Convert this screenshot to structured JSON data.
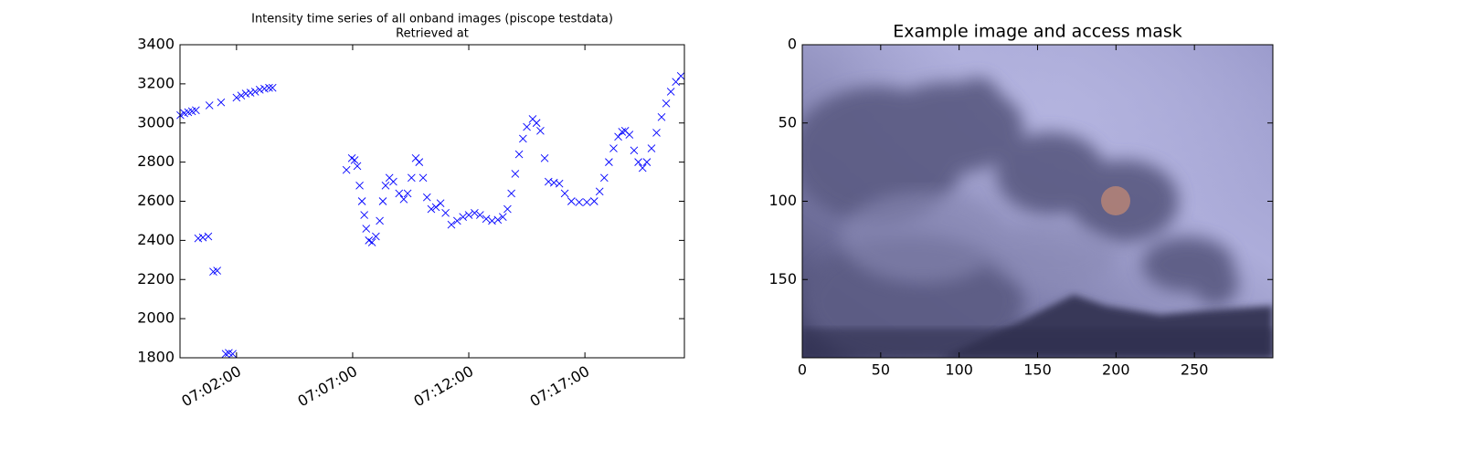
{
  "chart_data": [
    {
      "type": "scatter",
      "title": "Intensity time series of all onband images (piscope testdata)",
      "subtitle": "Retrieved at",
      "marker": "x",
      "color": "#0000ff",
      "x": [
        "06:59:35",
        "06:59:45",
        "06:59:55",
        "07:00:05",
        "07:00:15",
        "07:00:21",
        "07:00:33",
        "07:00:47",
        "07:00:50",
        "07:01:00",
        "07:01:10",
        "07:01:20",
        "07:01:32",
        "07:01:40",
        "07:01:50",
        "07:02:00",
        "07:02:12",
        "07:02:24",
        "07:02:36",
        "07:02:48",
        "07:03:00",
        "07:03:12",
        "07:03:24",
        "07:03:33",
        "07:06:44",
        "07:06:58",
        "07:07:05",
        "07:07:12",
        "07:07:18",
        "07:07:24",
        "07:07:30",
        "07:07:35",
        "07:07:42",
        "07:07:50",
        "07:08:00",
        "07:08:10",
        "07:08:18",
        "07:08:25",
        "07:08:35",
        "07:08:45",
        "07:09:00",
        "07:09:12",
        "07:09:22",
        "07:09:32",
        "07:09:43",
        "07:09:52",
        "07:10:02",
        "07:10:12",
        "07:10:23",
        "07:10:35",
        "07:10:47",
        "07:11:00",
        "07:11:15",
        "07:11:30",
        "07:11:45",
        "07:12:00",
        "07:12:15",
        "07:12:29",
        "07:12:45",
        "07:13:00",
        "07:13:15",
        "07:13:28",
        "07:13:40",
        "07:13:50",
        "07:14:00",
        "07:14:10",
        "07:14:20",
        "07:14:30",
        "07:14:45",
        "07:14:55",
        "07:15:05",
        "07:15:16",
        "07:15:26",
        "07:15:40",
        "07:15:54",
        "07:16:08",
        "07:16:25",
        "07:16:45",
        "07:17:05",
        "07:17:24",
        "07:17:38",
        "07:17:50",
        "07:18:02",
        "07:18:14",
        "07:18:26",
        "07:18:36",
        "07:18:44",
        "07:18:55",
        "07:19:07",
        "07:19:18",
        "07:19:29",
        "07:19:40",
        "07:19:52",
        "07:20:05",
        "07:20:18",
        "07:20:30",
        "07:20:42",
        "07:20:55",
        "07:21:08"
      ],
      "values": [
        3040,
        3050,
        3055,
        3060,
        3065,
        2410,
        2415,
        2420,
        3090,
        2240,
        2245,
        3105,
        1820,
        1825,
        1820,
        3130,
        3140,
        3150,
        3155,
        3160,
        3170,
        3175,
        3180,
        3180,
        2760,
        2820,
        2810,
        2780,
        2680,
        2600,
        2530,
        2460,
        2400,
        2390,
        2420,
        2500,
        2600,
        2680,
        2720,
        2700,
        2640,
        2610,
        2640,
        2720,
        2820,
        2800,
        2720,
        2620,
        2560,
        2570,
        2590,
        2540,
        2480,
        2500,
        2520,
        2530,
        2540,
        2530,
        2510,
        2500,
        2505,
        2520,
        2560,
        2640,
        2740,
        2840,
        2920,
        2980,
        3020,
        3000,
        2960,
        2820,
        2700,
        2695,
        2690,
        2640,
        2600,
        2595,
        2595,
        2600,
        2650,
        2720,
        2800,
        2870,
        2930,
        2955,
        2960,
        2940,
        2860,
        2800,
        2770,
        2800,
        2870,
        2950,
        3030,
        3100,
        3160,
        3210,
        3240
      ],
      "xlim": [
        "06:59:34",
        "07:21:17"
      ],
      "xticks": [
        "07:02:00",
        "07:07:00",
        "07:12:00",
        "07:17:00"
      ],
      "ylim": [
        1800,
        3400
      ],
      "yticks": [
        1800,
        2000,
        2200,
        2400,
        2600,
        2800,
        3000,
        3200,
        3400
      ]
    },
    {
      "type": "image",
      "title": "Example image and access mask",
      "xlim": [
        0,
        300
      ],
      "xticks": [
        0,
        50,
        100,
        150,
        200,
        250
      ],
      "ylim": [
        200,
        0
      ],
      "yticks": [
        0,
        50,
        100,
        150
      ]
    }
  ]
}
